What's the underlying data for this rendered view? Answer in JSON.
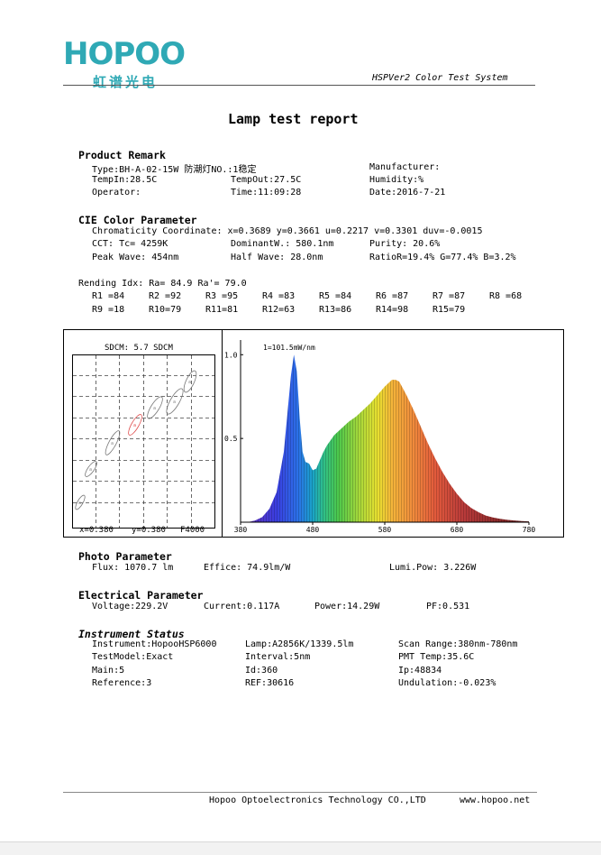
{
  "header": {
    "logo_text": "HOPOO",
    "logo_cn": "虹谱光电",
    "system_name": "HSPVer2 Color Test System"
  },
  "title": "Lamp test report",
  "product_remark": {
    "heading": "Product Remark",
    "type": "Type:BH-A-02-15W 防潮灯NO.:1稳定",
    "manufacturer": "Manufacturer:",
    "temp_in": "TempIn:28.5C",
    "temp_out": "TempOut:27.5C",
    "humidity": "Humidity:%",
    "operator": "Operator:",
    "time": "Time:11:09:28",
    "date": "Date:2016-7-21"
  },
  "cie": {
    "heading": "CIE Color Parameter",
    "chromaticity": "Chromaticity Coordinate: x=0.3689 y=0.3661 u=0.2217 v=0.3301  duv=-0.0015",
    "cct": "CCT: Tc= 4259K",
    "dominant": "DominantW.: 580.1nm",
    "purity": "Purity: 20.6%",
    "peak": "Peak Wave: 454nm",
    "half": "Half Wave: 28.0nm",
    "ratio": "RatioR=19.4% G=77.4% B=3.2%"
  },
  "rending": {
    "heading": "Rending Idx:  Ra= 84.9    Ra'= 79.0",
    "row1": [
      "R1 =84",
      "R2 =92",
      "R3 =95",
      "R4 =83",
      "R5 =84",
      "R6 =87",
      "R7 =87",
      "R8 =68"
    ],
    "row2": [
      "R9 =18",
      "R10=79",
      "R11=81",
      "R12=63",
      "R13=86",
      "R14=98",
      "R15=79"
    ]
  },
  "sdcm": {
    "title": "SDCM:  5.7 SDCM",
    "x": "x=0.380",
    "y": "y=0.380",
    "ref": "F4000"
  },
  "chart_data": {
    "type": "area",
    "title": "1=101.5mW/nm",
    "x_ticks": [
      "380",
      "480",
      "580",
      "680",
      "780"
    ],
    "y_ticks": [
      "1.0",
      "0.5"
    ],
    "xlim": [
      380,
      780
    ],
    "ylim": [
      0,
      1.05
    ],
    "x": [
      380,
      390,
      400,
      410,
      420,
      430,
      440,
      445,
      450,
      454,
      458,
      462,
      466,
      470,
      475,
      480,
      485,
      490,
      495,
      500,
      510,
      520,
      530,
      540,
      550,
      560,
      570,
      580,
      590,
      595,
      600,
      605,
      610,
      620,
      630,
      640,
      650,
      660,
      670,
      680,
      690,
      700,
      710,
      720,
      730,
      740,
      750,
      760,
      770,
      780
    ],
    "values": [
      0.0,
      0.0,
      0.01,
      0.03,
      0.08,
      0.18,
      0.42,
      0.65,
      0.88,
      1.0,
      0.9,
      0.62,
      0.42,
      0.36,
      0.35,
      0.31,
      0.32,
      0.37,
      0.42,
      0.46,
      0.52,
      0.56,
      0.6,
      0.63,
      0.67,
      0.71,
      0.76,
      0.81,
      0.85,
      0.85,
      0.84,
      0.8,
      0.76,
      0.67,
      0.57,
      0.47,
      0.38,
      0.3,
      0.23,
      0.17,
      0.12,
      0.085,
      0.06,
      0.04,
      0.028,
      0.02,
      0.014,
      0.01,
      0.007,
      0.005
    ]
  },
  "photo": {
    "heading": "Photo Parameter",
    "flux": "Flux: 1070.7 lm",
    "effice": "Effice: 74.9lm/W",
    "lumi": "Lumi.Pow: 3.226W"
  },
  "electrical": {
    "heading": "Electrical Parameter",
    "voltage": "Voltage:229.2V",
    "current": "Current:0.117A",
    "power": "Power:14.29W",
    "pf": "PF:0.531"
  },
  "instrument": {
    "heading": "Instrument Status",
    "instrument": "Instrument:HopooHSP6000",
    "lamp": "Lamp:A2856K/1339.5lm",
    "scan": "Scan Range:380nm-780nm",
    "model": "TestModel:Exact",
    "interval": "Interval:5nm",
    "pmt": "PMT Temp:35.6C",
    "main": "Main:5",
    "id": "Id:360",
    "ip": "Ip:48834",
    "reference": "Reference:3",
    "ref": "REF:30616",
    "undulation": "Undulation:-0.023%"
  },
  "footer": {
    "company": "Hopoo Optoelectronics Technology CO.,LTD",
    "website": "www.hopoo.net"
  }
}
